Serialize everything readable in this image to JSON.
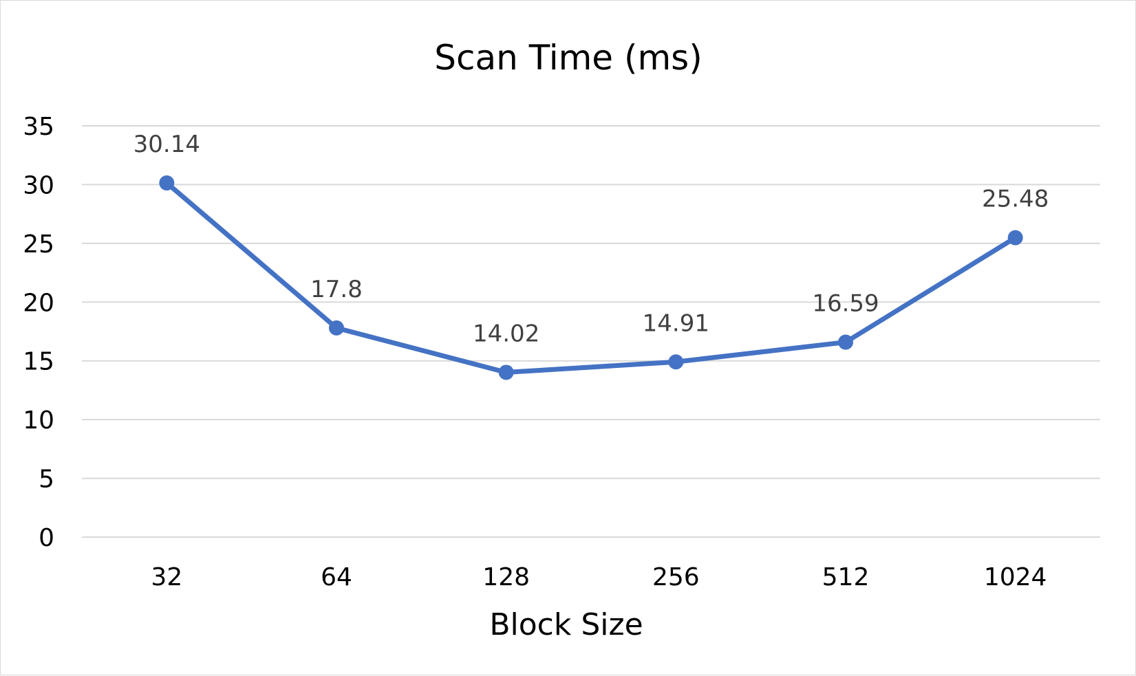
{
  "chart_data": {
    "type": "line",
    "title": "Scan Time (ms)",
    "xlabel": "Block Size",
    "ylabel": "",
    "categories": [
      "32",
      "64",
      "128",
      "256",
      "512",
      "1024"
    ],
    "series": [
      {
        "values": [
          30.14,
          17.8,
          14.02,
          14.91,
          16.59,
          25.48
        ],
        "color": "#4472C4"
      }
    ],
    "data_labels": [
      "30.14",
      "17.8",
      "14.02",
      "14.91",
      "16.59",
      "25.48"
    ],
    "ylim": [
      0,
      35
    ],
    "yticks": [
      0,
      5,
      10,
      15,
      20,
      25,
      30,
      35
    ],
    "grid": true,
    "legend": "none"
  }
}
